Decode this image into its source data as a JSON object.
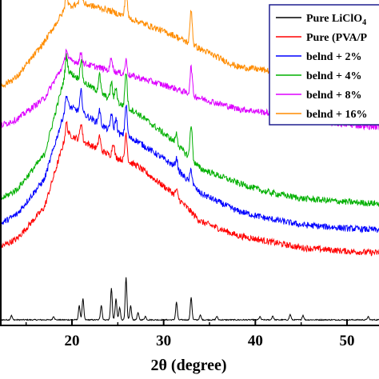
{
  "chart_data": {
    "type": "line",
    "xlabel": "2θ (degree)",
    "ylabel": "",
    "xlim": [
      10,
      57.5
    ],
    "x_ticks": [
      20,
      30,
      40,
      50
    ],
    "y_ticks_shown": false,
    "grid": false,
    "legend_placement": "top-right",
    "series": [
      {
        "name": "Pure LiClO4",
        "legend_label": "Pure LiClO",
        "legend_subscript": "4",
        "color": "#000000",
        "baseline": 0.0,
        "background": [
          [
            10,
            0
          ],
          [
            57.5,
            0
          ]
        ],
        "peaks": [
          [
            13.4,
            1.2
          ],
          [
            18.0,
            1.0
          ],
          [
            20.8,
            4.0
          ],
          [
            21.2,
            6.0
          ],
          [
            23.2,
            4.2
          ],
          [
            24.3,
            9.0
          ],
          [
            24.8,
            6.0
          ],
          [
            25.2,
            3.5
          ],
          [
            25.9,
            12.0
          ],
          [
            26.4,
            4.0
          ],
          [
            27.2,
            2.0
          ],
          [
            28.0,
            1.0
          ],
          [
            31.4,
            5.0
          ],
          [
            33.0,
            6.5
          ],
          [
            34.0,
            1.3
          ],
          [
            35.8,
            1.0
          ],
          [
            40.5,
            0.9
          ],
          [
            41.9,
            1.1
          ],
          [
            43.8,
            1.5
          ],
          [
            45.2,
            1.3
          ],
          [
            52.3,
            0.9
          ]
        ]
      },
      {
        "name": "Pure (PVA/PVP)",
        "legend_label": "Pure (PVA/P",
        "color": "#ff0000",
        "baseline": 18,
        "background": [
          [
            10,
            0
          ],
          [
            14,
            5
          ],
          [
            17,
            14
          ],
          [
            19.4,
            35
          ],
          [
            21,
            33
          ],
          [
            24,
            29
          ],
          [
            27,
            26
          ],
          [
            31,
            18
          ],
          [
            34,
            10
          ],
          [
            38,
            6
          ],
          [
            41,
            4.5
          ],
          [
            45,
            2.5
          ],
          [
            50,
            1.5
          ],
          [
            57.5,
            0.5
          ]
        ],
        "peaks": [
          [
            19.4,
            3
          ],
          [
            21.0,
            5
          ],
          [
            23.0,
            4
          ],
          [
            24.5,
            4
          ],
          [
            25.9,
            8
          ],
          [
            31.4,
            2
          ]
        ]
      },
      {
        "name": "belnd + 2%",
        "legend_label": "belnd + 2%",
        "color": "#0000ff",
        "baseline": 24,
        "background": [
          [
            10,
            0
          ],
          [
            14,
            6
          ],
          [
            17,
            16
          ],
          [
            19.4,
            37
          ],
          [
            21,
            35
          ],
          [
            24,
            30
          ],
          [
            27,
            27
          ],
          [
            31,
            20
          ],
          [
            34,
            12
          ],
          [
            38,
            7
          ],
          [
            41,
            5
          ],
          [
            45,
            3
          ],
          [
            50,
            2
          ],
          [
            57.5,
            1
          ]
        ],
        "peaks": [
          [
            19.4,
            3
          ],
          [
            21.0,
            6
          ],
          [
            23.0,
            4
          ],
          [
            24.3,
            5
          ],
          [
            24.8,
            4
          ],
          [
            25.9,
            9
          ],
          [
            31.4,
            3
          ],
          [
            33.0,
            4
          ]
        ]
      },
      {
        "name": "belnd + 4%",
        "legend_label": "belnd + 4%",
        "color": "#00b000",
        "baseline": 31,
        "background": [
          [
            10,
            0
          ],
          [
            14,
            6
          ],
          [
            17,
            16
          ],
          [
            19.4,
            40
          ],
          [
            21,
            37
          ],
          [
            24,
            32
          ],
          [
            27,
            28
          ],
          [
            31,
            20
          ],
          [
            34,
            12
          ],
          [
            38,
            8
          ],
          [
            41,
            5.5
          ],
          [
            45,
            3.5
          ],
          [
            50,
            2.5
          ],
          [
            57.5,
            1.5
          ]
        ],
        "peaks": [
          [
            19.4,
            4
          ],
          [
            21.0,
            6
          ],
          [
            23.0,
            5
          ],
          [
            24.3,
            5
          ],
          [
            24.8,
            4
          ],
          [
            25.9,
            10
          ],
          [
            31.4,
            3
          ],
          [
            33.0,
            10
          ]
        ]
      },
      {
        "name": "belnd + 8%",
        "legend_label": "belnd + 8%",
        "color": "#dd00ff",
        "baseline": 53,
        "background": [
          [
            10,
            0
          ],
          [
            14,
            4
          ],
          [
            17,
            10
          ],
          [
            19.4,
            21
          ],
          [
            21,
            20
          ],
          [
            24,
            18
          ],
          [
            27,
            16
          ],
          [
            31,
            13
          ],
          [
            34,
            10
          ],
          [
            38,
            7
          ],
          [
            41,
            6
          ],
          [
            45,
            4
          ],
          [
            50,
            2.5
          ],
          [
            57.5,
            1
          ]
        ],
        "peaks": [
          [
            19.4,
            3
          ],
          [
            21.0,
            3
          ],
          [
            24.3,
            4
          ],
          [
            25.9,
            4
          ],
          [
            33.0,
            8
          ]
        ]
      },
      {
        "name": "belnd + 16%",
        "legend_label": "belnd + 16%",
        "color": "#ff8c00",
        "baseline": 63,
        "background": [
          [
            10,
            0
          ],
          [
            14,
            6
          ],
          [
            17,
            16
          ],
          [
            19.4,
            26
          ],
          [
            21,
            27
          ],
          [
            24,
            25
          ],
          [
            27,
            22
          ],
          [
            31,
            18
          ],
          [
            34,
            14
          ],
          [
            38,
            9
          ],
          [
            41,
            8
          ],
          [
            45,
            6
          ],
          [
            50,
            4
          ],
          [
            57.5,
            2
          ]
        ],
        "peaks": [
          [
            19.4,
            4
          ],
          [
            21.0,
            6
          ],
          [
            25.9,
            8
          ],
          [
            33.0,
            10
          ]
        ]
      }
    ]
  }
}
